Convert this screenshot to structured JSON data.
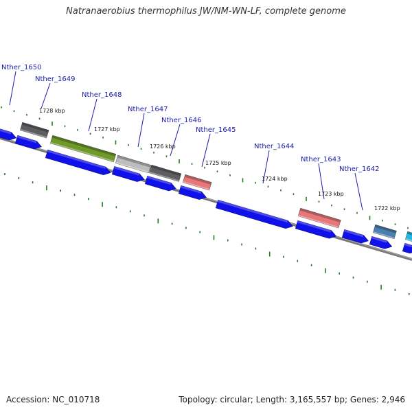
{
  "title": "Natranaerobius thermophilus JW/NM-WN-LF, complete genome",
  "footer": {
    "accession": "Accession: NC_010718",
    "summary": "Topology: circular; Length: 3,165,557 bp; Genes: 2,946"
  },
  "colors": {
    "cds_forward": "#1010e8",
    "backbone": "#777777",
    "tick": "#1e7a1e",
    "label_line": "#1b1baa",
    "gray_dark": "#5e5e62",
    "olive": "#6f9a2a",
    "gray_light": "#bdbdbd",
    "salmon": "#e8777a",
    "steel": "#4a7fb0",
    "cyan": "#22b8e8"
  },
  "gene_labels": [
    {
      "name": "Nther_1650"
    },
    {
      "name": "Nther_1649"
    },
    {
      "name": "Nther_1648"
    },
    {
      "name": "Nther_1647"
    },
    {
      "name": "Nther_1646"
    },
    {
      "name": "Nther_1645"
    },
    {
      "name": "Nther_1644"
    },
    {
      "name": "Nther_1643"
    },
    {
      "name": "Nther_1642"
    }
  ],
  "kbp_labels": [
    "1728 kbp",
    "1727 kbp",
    "1726 kbp",
    "1725 kbp",
    "1724 kbp",
    "1723 kbp",
    "1722 kbp"
  ]
}
